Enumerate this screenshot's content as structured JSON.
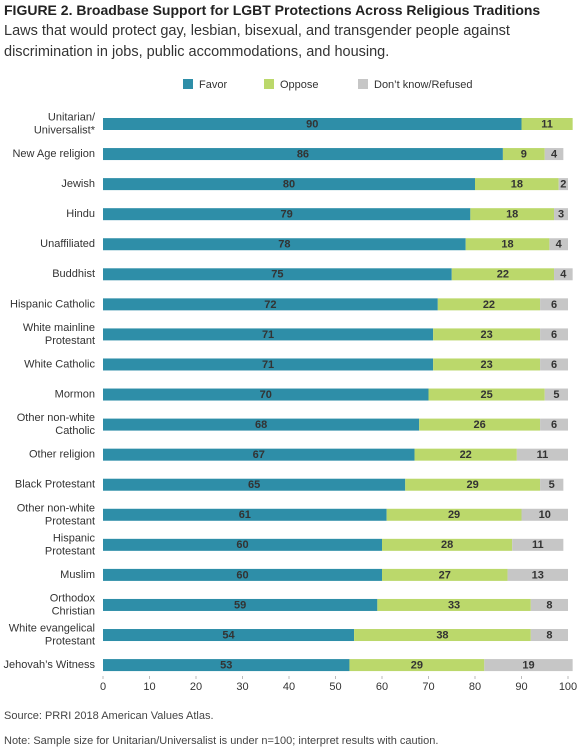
{
  "chart_data": {
    "type": "stacked-bar-horizontal",
    "title": "FIGURE 2.  Broadbase Support for LGBT Protections Across Religious Traditions",
    "subtitle": "Laws that would protect gay, lesbian, bisexual, and transgender people against discrimination in jobs, public accommodations, and housing.",
    "categories": [
      "Unitarian/\nUniversalist*",
      "New Age religion",
      "Jewish",
      "Hindu",
      "Unaffiliated",
      "Buddhist",
      "Hispanic Catholic",
      "White mainline\nProtestant",
      "White Catholic",
      "Mormon",
      "Other non-white\nCatholic",
      "Other religion",
      "Black Protestant",
      "Other non-white\nProtestant",
      "Hispanic\nProtestant",
      "Muslim",
      "Orthodox\nChristian",
      "White evangelical\nProtestant",
      "Jehovah’s Witness"
    ],
    "series": [
      {
        "name": "Favor",
        "color": "#2e8ea8",
        "values": [
          90,
          86,
          80,
          79,
          78,
          75,
          72,
          71,
          71,
          70,
          68,
          67,
          65,
          61,
          60,
          60,
          59,
          54,
          53
        ]
      },
      {
        "name": "Oppose",
        "color": "#bbd86b",
        "values": [
          11,
          9,
          18,
          18,
          18,
          22,
          22,
          23,
          23,
          25,
          26,
          22,
          29,
          29,
          28,
          27,
          33,
          38,
          29
        ]
      },
      {
        "name": "Don’t know/Refused",
        "color": "#c6c6c6",
        "values": [
          null,
          4,
          2,
          3,
          4,
          4,
          6,
          6,
          6,
          5,
          6,
          11,
          5,
          10,
          11,
          13,
          8,
          8,
          19
        ]
      }
    ],
    "xlim": [
      0,
      100
    ],
    "xticks": [
      0,
      10,
      20,
      30,
      40,
      50,
      60,
      70,
      80,
      90,
      100
    ],
    "source": "Source: PRRI 2018 American Values Atlas.",
    "note": "Note: Sample size for Unitarian/Universalist is under n=100; interpret results with caution."
  }
}
